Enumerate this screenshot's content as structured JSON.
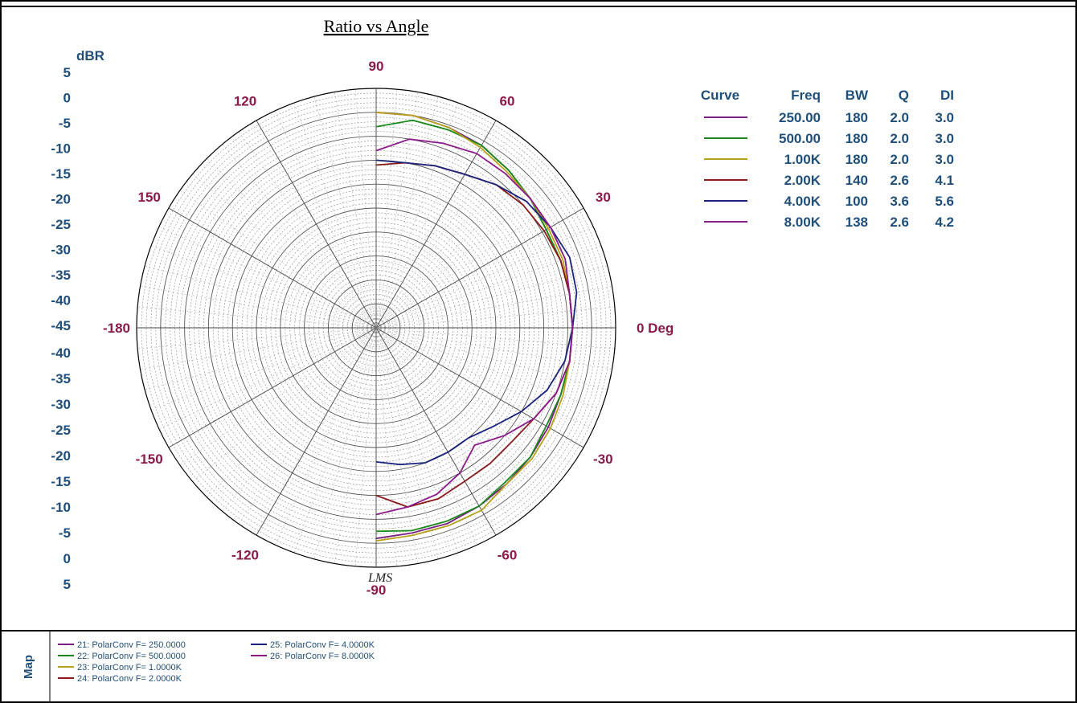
{
  "chart_data": {
    "type": "polar-line",
    "title": "Ratio vs Angle",
    "radial_unit_label": "dBR",
    "radial_range": [
      -45,
      5
    ],
    "radial_ticks_top": [
      "5",
      "0",
      "-5",
      "-10",
      "-15",
      "-20",
      "-25",
      "-30",
      "-35",
      "-40",
      "-45"
    ],
    "radial_ticks_bottom": [
      "-40",
      "-35",
      "-30",
      "-25",
      "-20",
      "-15",
      "-10",
      "-5",
      "0",
      "5"
    ],
    "angle_labels": [
      {
        "angle": 90,
        "text": "90"
      },
      {
        "angle": 60,
        "text": "60"
      },
      {
        "angle": 120,
        "text": "120"
      },
      {
        "angle": 30,
        "text": "30"
      },
      {
        "angle": 150,
        "text": "150"
      },
      {
        "angle": 0,
        "text": "0 Deg"
      },
      {
        "angle": 180,
        "text": "-180"
      },
      {
        "angle": -30,
        "text": "-30"
      },
      {
        "angle": -150,
        "text": "-150"
      },
      {
        "angle": -60,
        "text": "-60"
      },
      {
        "angle": -120,
        "text": "-120"
      },
      {
        "angle": -90,
        "text": "-90"
      }
    ],
    "legend_headers": [
      "Curve",
      "Freq",
      "BW",
      "Q",
      "DI"
    ],
    "series": [
      {
        "freq": "250.00",
        "bw": "180",
        "q": "2.0",
        "di": "3.0",
        "color": "#7a1f86",
        "points": [
          [
            90,
            0
          ],
          [
            80,
            0
          ],
          [
            70,
            -0.5
          ],
          [
            60,
            -1
          ],
          [
            50,
            -2
          ],
          [
            40,
            -3
          ],
          [
            30,
            -4
          ],
          [
            20,
            -4
          ],
          [
            10,
            -4
          ],
          [
            0,
            -4
          ],
          [
            -10,
            -4
          ],
          [
            -20,
            -4
          ],
          [
            -30,
            -3.5
          ],
          [
            -40,
            -3
          ],
          [
            -50,
            -2.5
          ],
          [
            -60,
            -2
          ],
          [
            -70,
            -1.5
          ],
          [
            -80,
            -1.5
          ],
          [
            -90,
            -1
          ]
        ]
      },
      {
        "freq": "500.00",
        "bw": "180",
        "q": "2.0",
        "di": "3.0",
        "color": "#1a8a1a",
        "points": [
          [
            90,
            -3
          ],
          [
            80,
            -1
          ],
          [
            70,
            -1
          ],
          [
            60,
            -1
          ],
          [
            50,
            -2
          ],
          [
            40,
            -3
          ],
          [
            30,
            -4
          ],
          [
            20,
            -4
          ],
          [
            10,
            -4
          ],
          [
            0,
            -4
          ],
          [
            -10,
            -4
          ],
          [
            -20,
            -4
          ],
          [
            -30,
            -4
          ],
          [
            -40,
            -3
          ],
          [
            -50,
            -3
          ],
          [
            -60,
            -2
          ],
          [
            -70,
            -2
          ],
          [
            -80,
            -2
          ],
          [
            -90,
            -2.5
          ]
        ]
      },
      {
        "freq": "1.00K",
        "bw": "180",
        "q": "2.0",
        "di": "3.0",
        "color": "#b8a21a",
        "points": [
          [
            90,
            0
          ],
          [
            80,
            0
          ],
          [
            70,
            -0.5
          ],
          [
            60,
            -1.5
          ],
          [
            50,
            -2.5
          ],
          [
            40,
            -3
          ],
          [
            30,
            -3.5
          ],
          [
            20,
            -3.5
          ],
          [
            10,
            -4
          ],
          [
            0,
            -4
          ],
          [
            -10,
            -4
          ],
          [
            -20,
            -3.5
          ],
          [
            -30,
            -3
          ],
          [
            -40,
            -2.5
          ],
          [
            -50,
            -2.5
          ],
          [
            -60,
            -1
          ],
          [
            -70,
            -1
          ],
          [
            -80,
            -1
          ],
          [
            -90,
            -0.5
          ]
        ]
      },
      {
        "freq": "2.00K",
        "bw": "140",
        "q": "2.6",
        "di": "4.1",
        "color": "#8b1a1a",
        "points": [
          [
            90,
            -11
          ],
          [
            80,
            -10
          ],
          [
            70,
            -9
          ],
          [
            60,
            -8
          ],
          [
            50,
            -6
          ],
          [
            40,
            -5
          ],
          [
            30,
            -4.5
          ],
          [
            20,
            -4
          ],
          [
            10,
            -4
          ],
          [
            0,
            -4
          ],
          [
            -10,
            -4
          ],
          [
            -20,
            -5
          ],
          [
            -30,
            -7
          ],
          [
            -40,
            -8
          ],
          [
            -50,
            -8
          ],
          [
            -60,
            -8
          ],
          [
            -70,
            -7
          ],
          [
            -80,
            -7
          ],
          [
            -90,
            -10
          ]
        ]
      },
      {
        "freq": "4.00K",
        "bw": "100",
        "q": "3.6",
        "di": "5.6",
        "color": "#1a237e",
        "points": [
          [
            90,
            -10
          ],
          [
            80,
            -10
          ],
          [
            70,
            -9
          ],
          [
            60,
            -8
          ],
          [
            50,
            -6
          ],
          [
            40,
            -4
          ],
          [
            30,
            -3
          ],
          [
            20,
            -2
          ],
          [
            10,
            -2.5
          ],
          [
            0,
            -4
          ],
          [
            -10,
            -5
          ],
          [
            -20,
            -7
          ],
          [
            -30,
            -10
          ],
          [
            -40,
            -13
          ],
          [
            -50,
            -15
          ],
          [
            -60,
            -15
          ],
          [
            -70,
            -15
          ],
          [
            -80,
            -16
          ],
          [
            -90,
            -17
          ]
        ]
      },
      {
        "freq": "8.00K",
        "bw": "138",
        "q": "2.6",
        "di": "4.2",
        "color": "#8b1a8b",
        "points": [
          [
            90,
            -8
          ],
          [
            80,
            -5
          ],
          [
            70,
            -4
          ],
          [
            60,
            -3
          ],
          [
            50,
            -3
          ],
          [
            40,
            -3
          ],
          [
            30,
            -3
          ],
          [
            20,
            -3
          ],
          [
            10,
            -4
          ],
          [
            0,
            -4
          ],
          [
            -10,
            -4
          ],
          [
            -20,
            -5
          ],
          [
            -30,
            -7
          ],
          [
            -40,
            -10
          ],
          [
            -50,
            -13
          ],
          [
            -60,
            -10
          ],
          [
            -70,
            -8
          ],
          [
            -80,
            -7
          ],
          [
            -90,
            -6
          ]
        ]
      }
    ]
  },
  "map": {
    "title": "Map",
    "items": [
      {
        "label": "21: PolarConv F= 250.0000",
        "color": "#7a1f86"
      },
      {
        "label": "22: PolarConv F= 500.0000",
        "color": "#1a8a1a"
      },
      {
        "label": "23: PolarConv F=   1.0000K",
        "color": "#b8a21a"
      },
      {
        "label": "24: PolarConv F=   2.0000K",
        "color": "#8b1a1a"
      },
      {
        "label": "25: PolarConv F=   4.0000K",
        "color": "#1a237e"
      },
      {
        "label": "26: PolarConv F=   8.0000K",
        "color": "#8b1a8b"
      }
    ]
  },
  "signature": "LMS"
}
